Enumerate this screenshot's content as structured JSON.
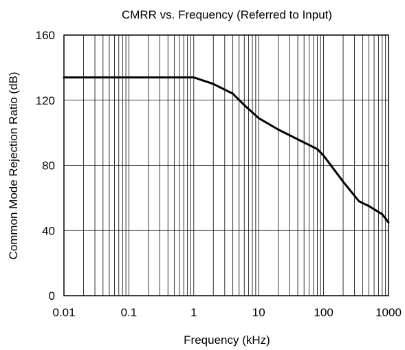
{
  "chart_data": {
    "type": "line",
    "title": "CMRR vs. Frequency (Referred to Input)",
    "xlabel": "Frequency (kHz)",
    "ylabel": "Common Mode Rejection Ratio (dB)",
    "x_scale": "log",
    "xlim": [
      0.01,
      1000
    ],
    "ylim": [
      0,
      160
    ],
    "x_ticks": [
      0.01,
      0.1,
      1,
      10,
      100,
      1000
    ],
    "x_tick_labels": [
      "0.01",
      "0.1",
      "1",
      "10",
      "100",
      "1000"
    ],
    "y_ticks": [
      0,
      40,
      80,
      120,
      160
    ],
    "y_tick_labels": [
      "0",
      "40",
      "80",
      "120",
      "160"
    ],
    "grid": true,
    "series": [
      {
        "color": "#000000",
        "points": [
          {
            "x": 0.01,
            "y": 134
          },
          {
            "x": 0.1,
            "y": 134
          },
          {
            "x": 0.5,
            "y": 134
          },
          {
            "x": 1,
            "y": 134
          },
          {
            "x": 2,
            "y": 130
          },
          {
            "x": 4,
            "y": 124
          },
          {
            "x": 6,
            "y": 117
          },
          {
            "x": 10,
            "y": 109
          },
          {
            "x": 20,
            "y": 102
          },
          {
            "x": 40,
            "y": 96
          },
          {
            "x": 80,
            "y": 90
          },
          {
            "x": 100,
            "y": 86
          },
          {
            "x": 200,
            "y": 70
          },
          {
            "x": 350,
            "y": 58
          },
          {
            "x": 500,
            "y": 55
          },
          {
            "x": 800,
            "y": 50
          },
          {
            "x": 1000,
            "y": 45
          }
        ]
      }
    ]
  }
}
